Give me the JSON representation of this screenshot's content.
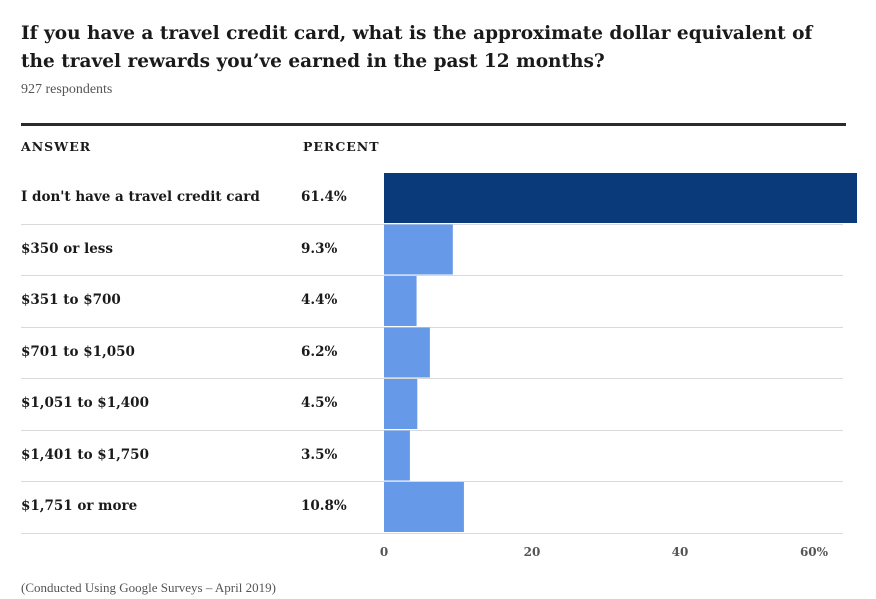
{
  "title": "If you have a travel credit card, what is the approximate dollar equivalent of the travel rewards you’ve earned in the past 12 months?",
  "respondents": "927 respondents",
  "footnote": "(Conducted Using Google Surveys – April 2019)",
  "headers": {
    "answer": "ANSWER",
    "percent": "PERCENT"
  },
  "colors": {
    "highlight": "#0b3a7a",
    "bar": "#6699e8",
    "separator": "#d9d9d9"
  },
  "rows": [
    {
      "label": "I don't have a travel credit card",
      "percent_text": "61.4%"
    },
    {
      "label": "$350 or less",
      "percent_text": "9.3%"
    },
    {
      "label": "$351 to $700",
      "percent_text": "4.4%"
    },
    {
      "label": "$701 to $1,050",
      "percent_text": "6.2%"
    },
    {
      "label": "$1,051 to $1,400",
      "percent_text": "4.5%"
    },
    {
      "label": "$1,401 to $1,750",
      "percent_text": "3.5%"
    },
    {
      "label": "$1,751 or more",
      "percent_text": "10.8%"
    }
  ],
  "chart_data": {
    "type": "bar",
    "orientation": "horizontal",
    "categories": [
      "I don't have a travel credit card",
      "$350 or less",
      "$351 to $700",
      "$701 to $1,050",
      "$1,051 to $1,400",
      "$1,401 to $1,750",
      "$1,751 or more"
    ],
    "values": [
      61.4,
      9.3,
      4.4,
      6.2,
      4.5,
      3.5,
      10.8
    ],
    "title": "If you have a travel credit card, what is the approximate dollar equivalent of the travel rewards you’ve earned in the past 12 months?",
    "xlabel": "",
    "ylabel": "",
    "xlim": [
      0,
      60
    ],
    "x_ticks": [
      "0",
      "20",
      "40",
      "60%"
    ],
    "highlight_index": 0,
    "grid": true
  }
}
